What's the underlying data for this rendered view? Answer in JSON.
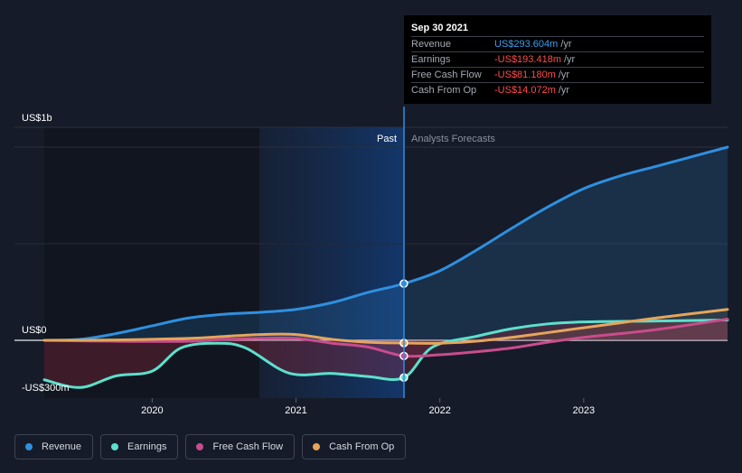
{
  "colors": {
    "revenue": "#2f8fe0",
    "earnings": "#5ce0cc",
    "fcf": "#c94c8c",
    "cfo": "#e5a55c",
    "background": "#151b28"
  },
  "tooltip": {
    "date": "Sep 30 2021",
    "rows": [
      {
        "label": "Revenue",
        "value": "US$293.604m",
        "unit": "/yr",
        "color": "#3b9df2"
      },
      {
        "label": "Earnings",
        "value": "-US$193.418m",
        "unit": "/yr",
        "color": "#ff4b4b"
      },
      {
        "label": "Free Cash Flow",
        "value": "-US$81.180m",
        "unit": "/yr",
        "color": "#ff4b4b"
      },
      {
        "label": "Cash From Op",
        "value": "-US$14.072m",
        "unit": "/yr",
        "color": "#ff4b4b"
      }
    ]
  },
  "chart_data": {
    "type": "line",
    "title": "",
    "y_tick_labels": [
      "US$1b",
      "US$0",
      "-US$300m"
    ],
    "ylim": [
      -300,
      1000
    ],
    "xlim": [
      2019.25,
      2024.0
    ],
    "x_ticks": [
      2020,
      2021,
      2022,
      2023
    ],
    "x_tick_labels": [
      "2020",
      "2021",
      "2022",
      "2023"
    ],
    "divider_date": 2021.75,
    "past_label": "Past",
    "forecast_label": "Analysts Forecasts",
    "series": [
      {
        "name": "Revenue",
        "key": "revenue",
        "points": [
          [
            2019.25,
            0
          ],
          [
            2019.5,
            5
          ],
          [
            2019.75,
            35
          ],
          [
            2020.0,
            75
          ],
          [
            2020.25,
            115
          ],
          [
            2020.5,
            135
          ],
          [
            2020.75,
            145
          ],
          [
            2021.0,
            160
          ],
          [
            2021.25,
            195
          ],
          [
            2021.5,
            248
          ],
          [
            2021.75,
            293.6
          ],
          [
            2022.0,
            360
          ],
          [
            2022.25,
            465
          ],
          [
            2022.5,
            580
          ],
          [
            2022.75,
            690
          ],
          [
            2023.0,
            785
          ],
          [
            2023.25,
            850
          ],
          [
            2023.5,
            900
          ],
          [
            2023.75,
            950
          ],
          [
            2024.0,
            1000
          ]
        ]
      },
      {
        "name": "Earnings",
        "key": "earnings",
        "points": [
          [
            2019.25,
            -205
          ],
          [
            2019.5,
            -245
          ],
          [
            2019.75,
            -185
          ],
          [
            2020.0,
            -160
          ],
          [
            2020.2,
            -40
          ],
          [
            2020.45,
            -15
          ],
          [
            2020.65,
            -40
          ],
          [
            2020.95,
            -170
          ],
          [
            2021.25,
            -172
          ],
          [
            2021.5,
            -188
          ],
          [
            2021.75,
            -193.4
          ],
          [
            2021.95,
            -35
          ],
          [
            2022.25,
            20
          ],
          [
            2022.5,
            60
          ],
          [
            2022.75,
            85
          ],
          [
            2023.0,
            95
          ],
          [
            2023.5,
            100
          ],
          [
            2024.0,
            105
          ]
        ]
      },
      {
        "name": "Free Cash Flow",
        "key": "fcf",
        "points": [
          [
            2019.25,
            0
          ],
          [
            2019.75,
            -5
          ],
          [
            2020.25,
            -5
          ],
          [
            2020.5,
            5
          ],
          [
            2020.75,
            10
          ],
          [
            2021.0,
            10
          ],
          [
            2021.25,
            -15
          ],
          [
            2021.5,
            -35
          ],
          [
            2021.75,
            -81.2
          ],
          [
            2022.0,
            -75
          ],
          [
            2022.25,
            -60
          ],
          [
            2022.5,
            -40
          ],
          [
            2022.75,
            -10
          ],
          [
            2023.0,
            15
          ],
          [
            2023.5,
            55
          ],
          [
            2024.0,
            110
          ]
        ]
      },
      {
        "name": "Cash From Op",
        "key": "cfo",
        "points": [
          [
            2019.25,
            0
          ],
          [
            2019.75,
            2
          ],
          [
            2020.25,
            10
          ],
          [
            2020.5,
            20
          ],
          [
            2020.75,
            30
          ],
          [
            2021.0,
            30
          ],
          [
            2021.25,
            5
          ],
          [
            2021.5,
            -10
          ],
          [
            2021.75,
            -14.1
          ],
          [
            2022.0,
            -15
          ],
          [
            2022.25,
            -5
          ],
          [
            2022.5,
            15
          ],
          [
            2022.75,
            40
          ],
          [
            2023.0,
            65
          ],
          [
            2023.5,
            115
          ],
          [
            2024.0,
            160
          ]
        ]
      }
    ]
  },
  "legend": {
    "items": [
      {
        "label": "Revenue",
        "key": "revenue"
      },
      {
        "label": "Earnings",
        "key": "earnings"
      },
      {
        "label": "Free Cash Flow",
        "key": "fcf"
      },
      {
        "label": "Cash From Op",
        "key": "cfo"
      }
    ]
  }
}
